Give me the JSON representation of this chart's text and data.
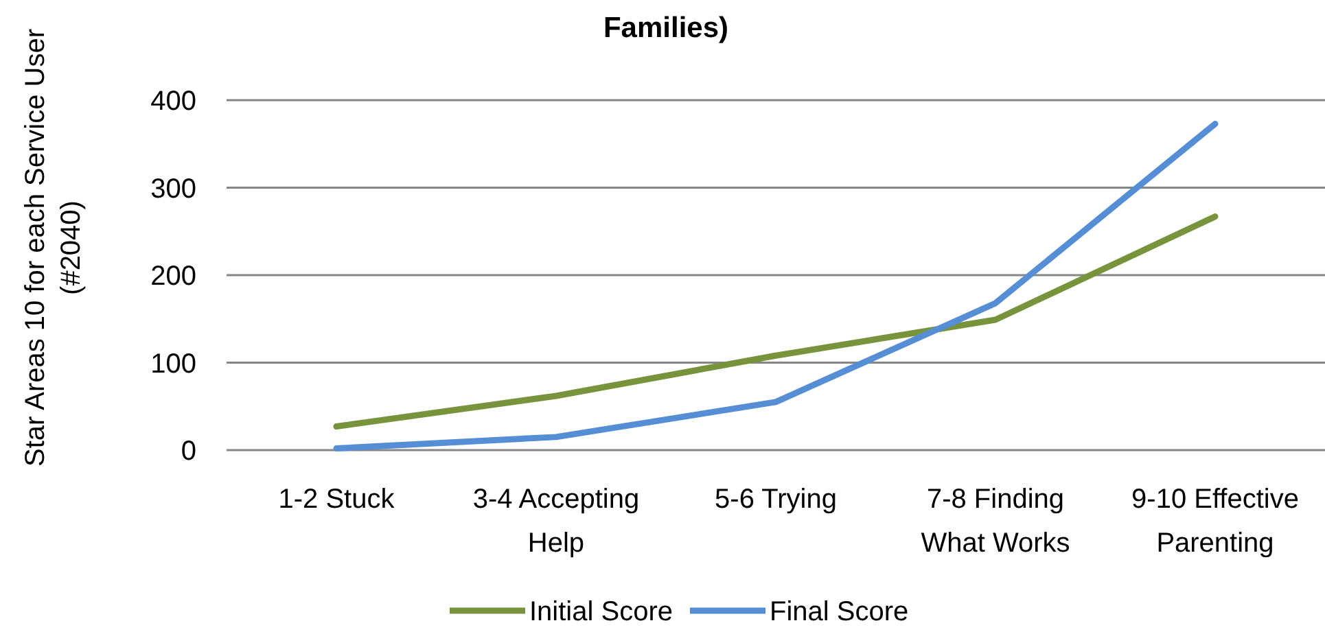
{
  "chart_data": {
    "type": "line",
    "title": "Families)",
    "ylabel": "Star Areas 10 for each Service User (#2040)",
    "categories": [
      "1-2 Stuck",
      "3-4 Accepting Help",
      "5-6 Trying",
      "7-8 Finding What Works",
      "9-10 Effective Parenting"
    ],
    "series": [
      {
        "name": "Initial Score",
        "color": "#77933c",
        "values": [
          27,
          62,
          108,
          149,
          267
        ]
      },
      {
        "name": "Final Score",
        "color": "#558ed5",
        "values": [
          2,
          15,
          55,
          168,
          373
        ]
      }
    ],
    "ylim": [
      0,
      400
    ],
    "yticks": [
      0,
      100,
      200,
      300,
      400
    ],
    "grid": "y",
    "legend": "bottom",
    "marker": "none"
  }
}
